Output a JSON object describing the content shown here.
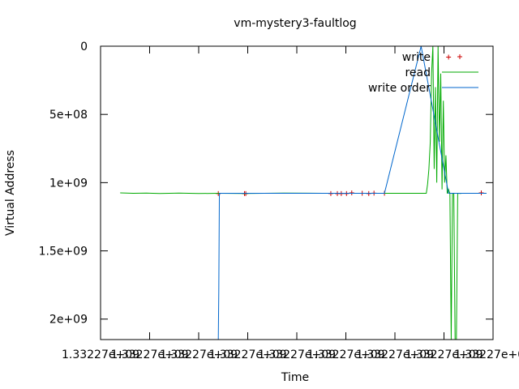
{
  "chart_data": {
    "type": "line",
    "title": "vm-mystery3-faultlog",
    "xlabel": "Time",
    "ylabel": "Virtual Address",
    "x_tick_labels": [
      "1.33227e+09",
      "1.33227e+09",
      "1.33227e+09",
      "1.33227e+09",
      "1.33227e+09",
      "1.33227e+09",
      "1.33227e+09",
      "1.33227e+09",
      "1.33227e+09"
    ],
    "y_tick_labels": [
      "0",
      "5e+08",
      "1e+09",
      "1.5e+09",
      "2e+09"
    ],
    "ylim": [
      0,
      2150000000
    ],
    "y_reversed": true,
    "grid": false,
    "legend_position": "top-right",
    "series": [
      {
        "name": "write",
        "style": "points",
        "color": "#cc0000",
        "x": [
          1332270190,
          1332270210,
          1332270211,
          1332270276,
          1332270281,
          1332270284,
          1332270288,
          1332270292,
          1332270300,
          1332270305,
          1332270309,
          1332270317,
          1332270345,
          1332270366,
          1332270391
        ],
        "y": [
          1080000000,
          1080000000,
          1080000000,
          1080000000,
          1080000000,
          1080000000,
          1080000000,
          1075000000,
          1078000000,
          1080000000,
          1077000000,
          1078000000,
          0,
          80000000,
          1075000000
        ]
      },
      {
        "name": "read",
        "style": "lines",
        "color": "#00aa00",
        "x": [
          1332270115,
          1332270125,
          1332270135,
          1332270145,
          1332270160,
          1332270175,
          1332270190,
          1332270210,
          1332270240,
          1332270270,
          1332270300,
          1332270330,
          1332270349,
          1332270350,
          1332270351,
          1332270352,
          1332270353,
          1332270354,
          1332270355,
          1332270356,
          1332270357,
          1332270358,
          1332270359,
          1332270360,
          1332270361,
          1332270362,
          1332270363,
          1332270364,
          1332270365,
          1332270366,
          1332270367,
          1332270368,
          1332270369,
          1332270370,
          1332270371,
          1332270372,
          1332270373,
          1332270374,
          1332270375,
          1332270376,
          1332270378,
          1332270385,
          1332270395
        ],
        "y": [
          1075000000,
          1078000000,
          1076000000,
          1079000000,
          1077000000,
          1080000000,
          1078000000,
          1079000000,
          1077000000,
          1078000000,
          1078000000,
          1078000000,
          1078000000,
          1010000000,
          900000000,
          700000000,
          200000000,
          0,
          900000000,
          300000000,
          1000000000,
          0,
          700000000,
          200000000,
          1050000000,
          400000000,
          1000000000,
          800000000,
          1080000000,
          1050000000,
          1080000000,
          2150000000,
          1080000000,
          1078000000,
          2150000000,
          2150000000,
          1080000000,
          1078000000,
          1080000000,
          1078000000,
          1078000000,
          1078000000,
          1078000000
        ]
      },
      {
        "name": "write order",
        "style": "lines",
        "color": "#0066cc",
        "x": [
          1332270190,
          1332270190.4,
          1332270190.8,
          1332270191,
          1332270205,
          1332270225,
          1332270250,
          1332270270,
          1332270300,
          1332270317,
          1332270345,
          1332270366,
          1332270380,
          1332270395
        ],
        "y": [
          2150000000,
          1800000000,
          1100000000,
          1078000000,
          1078000000,
          1078000000,
          1078000000,
          1078000000,
          1078000000,
          1078000000,
          0,
          1078000000,
          1078000000,
          1078000000
        ]
      }
    ]
  }
}
